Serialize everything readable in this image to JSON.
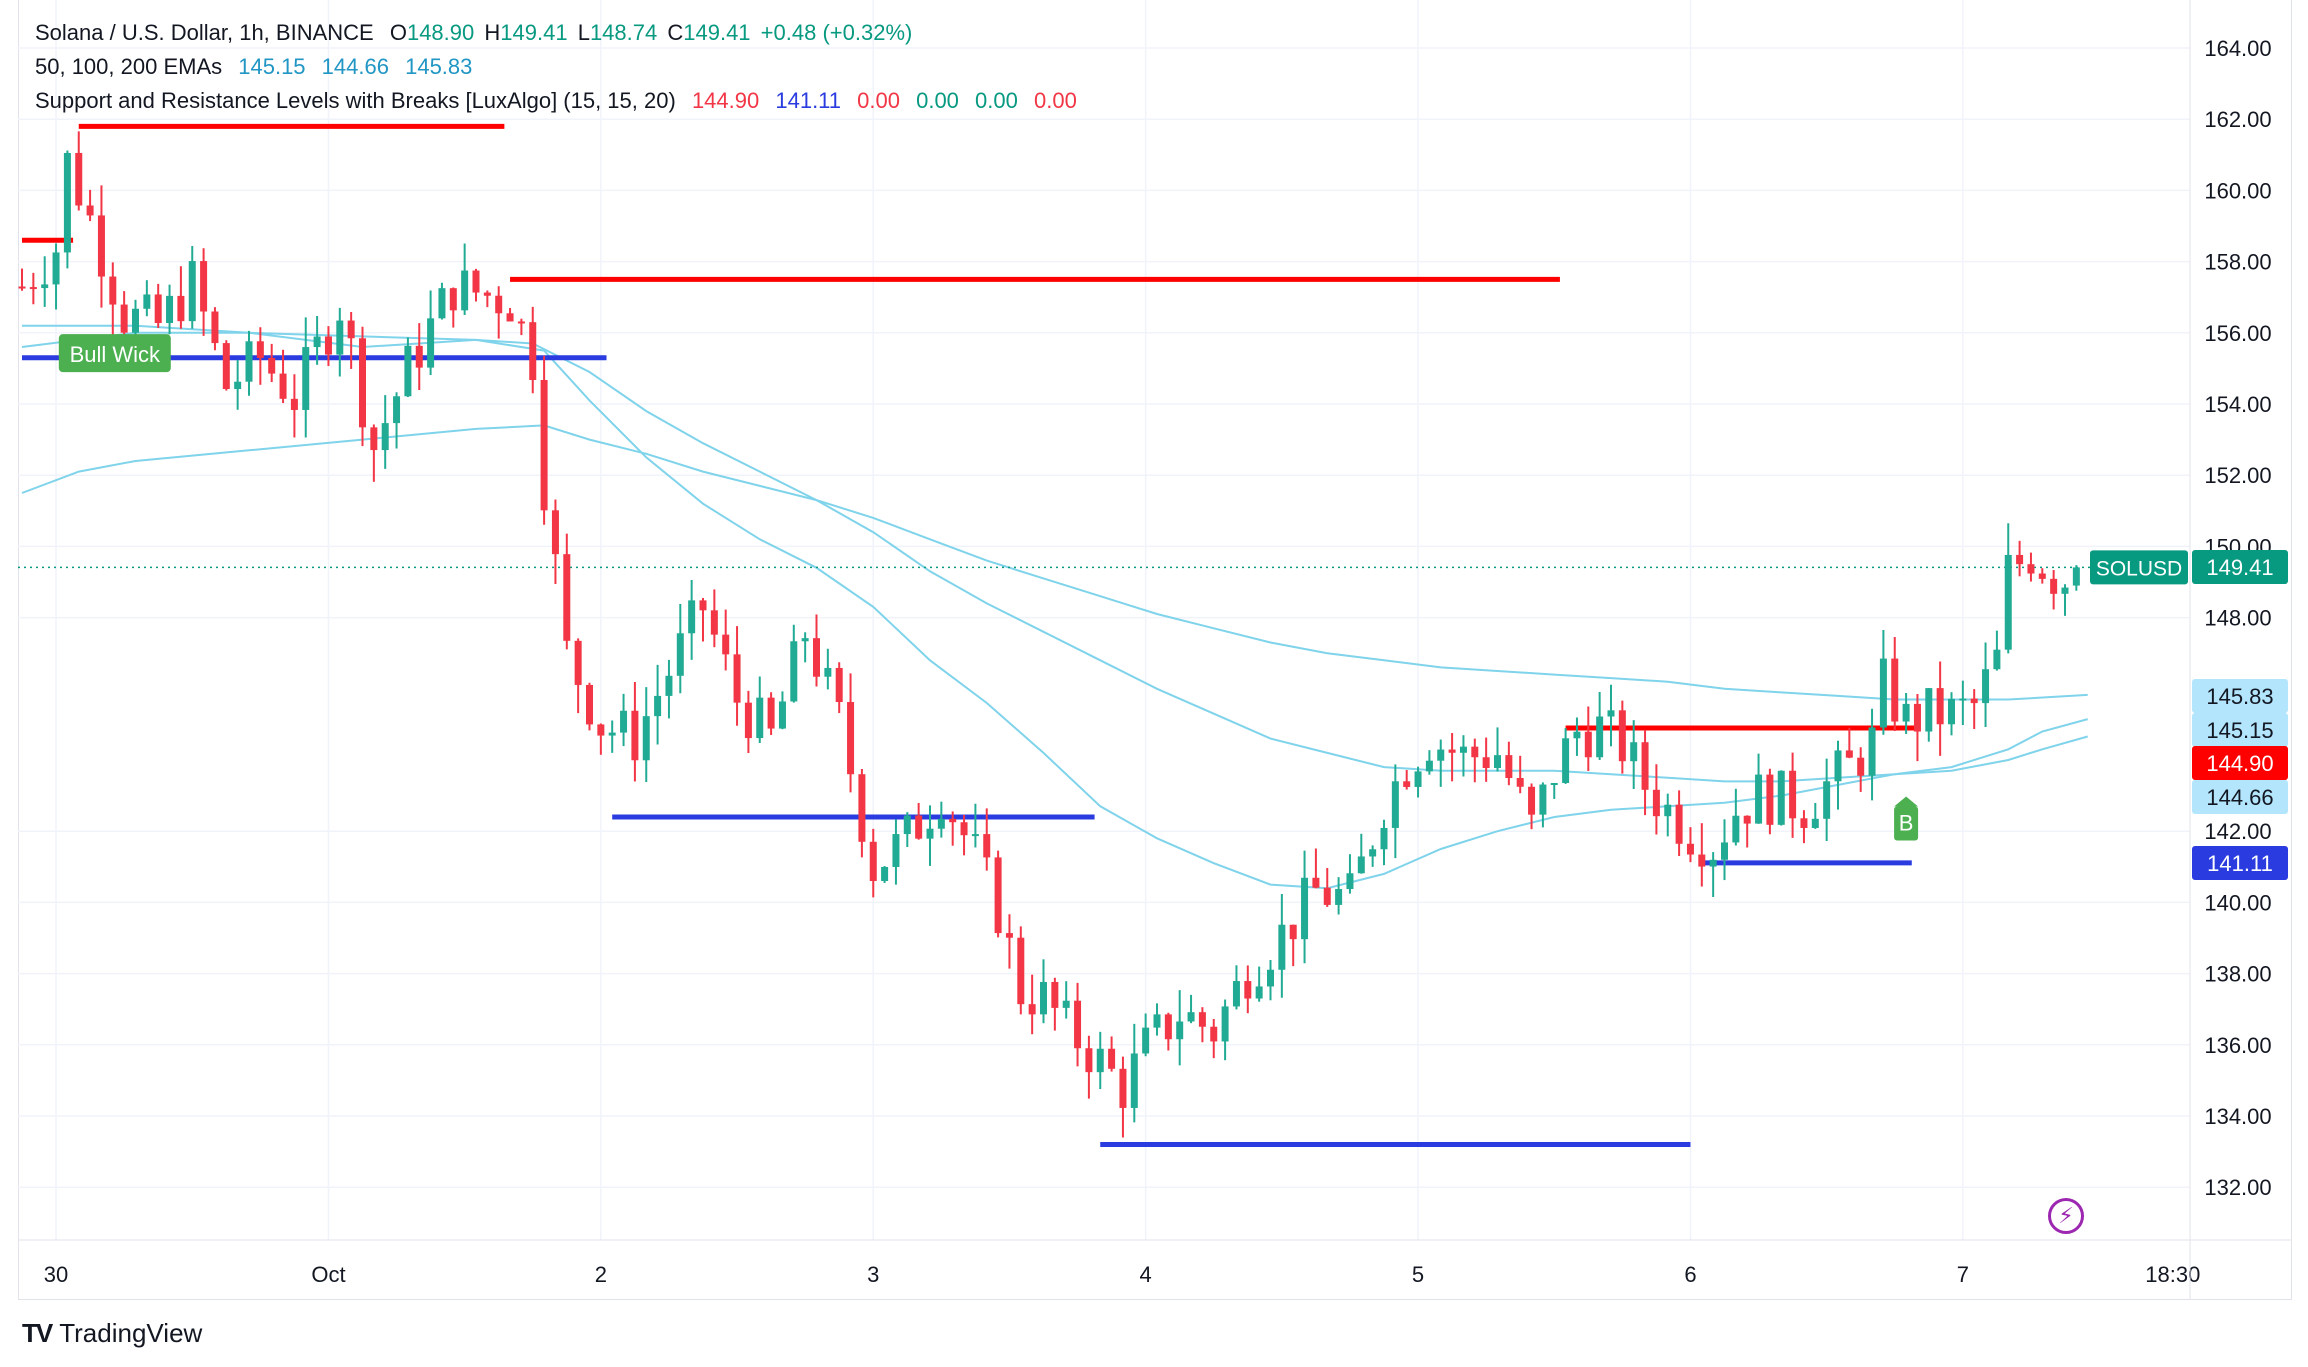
{
  "header": {
    "symbol": "Solana / U.S. Dollar, 1h, BINANCE",
    "o_label": "O",
    "o_value": "148.90",
    "h_label": "H",
    "h_value": "149.41",
    "l_label": "L",
    "l_value": "148.74",
    "c_label": "C",
    "c_value": "149.41",
    "change": "+0.48 (+0.32%)"
  },
  "indicators": {
    "ema_title": "50, 100, 200 EMAs",
    "ema_values": [
      "145.15",
      "144.66",
      "145.83"
    ],
    "sr_title": "Support and Resistance Levels with Breaks [LuxAlgo] (15, 15, 20)",
    "sr_values": [
      "144.90",
      "141.11",
      "0.00",
      "0.00",
      "0.00",
      "0.00"
    ]
  },
  "colors": {
    "up": "#22ab94",
    "down": "#f23645",
    "ema": "#7fd3ea",
    "resistance": "#ff0000",
    "support": "#2a3ce0",
    "grid": "#f0f3fa",
    "green_value": "#089981",
    "ema_value": "#2196c4",
    "badge_green": "#4caf50"
  },
  "labels": {
    "bull_wick": "Bull Wick",
    "break_b": "B",
    "symbol_tag": "SOLUSD",
    "brand": "TradingView"
  },
  "price_tags": [
    {
      "text": "149.41",
      "value": 149.41,
      "bg": "#089981"
    },
    {
      "text": "145.83",
      "value": 145.83,
      "bg": "#b3e5fc"
    },
    {
      "text": "145.15",
      "value": 145.15,
      "bg": "#b3e5fc"
    },
    {
      "text": "144.90",
      "value": 144.9,
      "bg": "#ff0000"
    },
    {
      "text": "144.66",
      "value": 144.66,
      "bg": "#b3e5fc"
    },
    {
      "text": "141.11",
      "value": 141.11,
      "bg": "#2a3ce0"
    }
  ],
  "chart_data": {
    "type": "candlestick",
    "interval": "1h",
    "yticks": [
      "164.00",
      "162.00",
      "160.00",
      "158.00",
      "156.00",
      "154.00",
      "152.00",
      "150.00",
      "148.00",
      "142.00",
      "140.00",
      "138.00",
      "136.00",
      "134.00",
      "132.00"
    ],
    "ylim": [
      131.5,
      165
    ],
    "xticks": [
      {
        "label": "30",
        "t": 3
      },
      {
        "label": "Oct",
        "t": 27
      },
      {
        "label": "2",
        "t": 51
      },
      {
        "label": "3",
        "t": 75
      },
      {
        "label": "4",
        "t": 99
      },
      {
        "label": "5",
        "t": 123
      },
      {
        "label": "6",
        "t": 147
      },
      {
        "label": "7",
        "t": 171
      },
      {
        "label": "18:30",
        "t": 189.5
      }
    ],
    "last_price": 149.41,
    "keypoints": [
      [
        0,
        157.3
      ],
      [
        3,
        158.4
      ],
      [
        4,
        160.8
      ],
      [
        6,
        159.2
      ],
      [
        9,
        156.5
      ],
      [
        12,
        156.2
      ],
      [
        15,
        157.4
      ],
      [
        18,
        154.5
      ],
      [
        21,
        155.3
      ],
      [
        24,
        154.2
      ],
      [
        28,
        156.8
      ],
      [
        31,
        152.8
      ],
      [
        34,
        155.0
      ],
      [
        38,
        157.3
      ],
      [
        43,
        156.9
      ],
      [
        45,
        155.3
      ],
      [
        46,
        151.8
      ],
      [
        48,
        147.0
      ],
      [
        51,
        145.0
      ],
      [
        54,
        144.6
      ],
      [
        57,
        146.5
      ],
      [
        60,
        148.3
      ],
      [
        63,
        145.7
      ],
      [
        66,
        144.6
      ],
      [
        69,
        147.6
      ],
      [
        72,
        145.1
      ],
      [
        75,
        141.0
      ],
      [
        78,
        141.8
      ],
      [
        81,
        143.1
      ],
      [
        84,
        141.3
      ],
      [
        86,
        139.8
      ],
      [
        88,
        137.5
      ],
      [
        90,
        137.3
      ],
      [
        92,
        136.5
      ],
      [
        95,
        135.5
      ],
      [
        97,
        134.8
      ],
      [
        99,
        135.9
      ],
      [
        102,
        136.9
      ],
      [
        105,
        136.4
      ],
      [
        108,
        138.1
      ],
      [
        111,
        139.1
      ],
      [
        114,
        140.3
      ],
      [
        117,
        140.1
      ],
      [
        120,
        142.8
      ],
      [
        122,
        143.9
      ],
      [
        124,
        144.6
      ],
      [
        127,
        144.1
      ],
      [
        130,
        144.2
      ],
      [
        133,
        142.1
      ],
      [
        135,
        143.7
      ],
      [
        137,
        144.8
      ],
      [
        139,
        144.9
      ],
      [
        141,
        144.4
      ],
      [
        143,
        143.3
      ],
      [
        145,
        142.6
      ],
      [
        147,
        142.0
      ],
      [
        149,
        141.6
      ],
      [
        151,
        142.6
      ],
      [
        153,
        143.0
      ],
      [
        155,
        142.9
      ],
      [
        157,
        142.7
      ],
      [
        159,
        143.3
      ],
      [
        161,
        143.8
      ],
      [
        163,
        144.5
      ],
      [
        164,
        146.1
      ],
      [
        166,
        145.1
      ],
      [
        168,
        145.3
      ],
      [
        170,
        145.3
      ],
      [
        172,
        145.5
      ],
      [
        174,
        146.8
      ],
      [
        175,
        149.3
      ],
      [
        177,
        149.8
      ],
      [
        179,
        149.2
      ],
      [
        180,
        149.1
      ],
      [
        181,
        149.41
      ]
    ],
    "series": [
      {
        "name": "EMA 50",
        "points": [
          [
            0,
            156.2
          ],
          [
            10,
            156.2
          ],
          [
            20,
            156.0
          ],
          [
            30,
            155.6
          ],
          [
            40,
            155.8
          ],
          [
            46,
            155.5
          ],
          [
            50,
            154.1
          ],
          [
            55,
            152.5
          ],
          [
            60,
            151.2
          ],
          [
            65,
            150.2
          ],
          [
            70,
            149.4
          ],
          [
            75,
            148.3
          ],
          [
            80,
            146.8
          ],
          [
            85,
            145.6
          ],
          [
            90,
            144.2
          ],
          [
            95,
            142.7
          ],
          [
            100,
            141.8
          ],
          [
            105,
            141.1
          ],
          [
            110,
            140.5
          ],
          [
            115,
            140.4
          ],
          [
            120,
            140.8
          ],
          [
            125,
            141.5
          ],
          [
            130,
            142.0
          ],
          [
            135,
            142.4
          ],
          [
            140,
            142.6
          ],
          [
            145,
            142.7
          ],
          [
            150,
            142.8
          ],
          [
            155,
            143.0
          ],
          [
            160,
            143.3
          ],
          [
            165,
            143.6
          ],
          [
            170,
            143.8
          ],
          [
            175,
            144.3
          ],
          [
            178,
            144.8
          ],
          [
            182,
            145.15
          ]
        ]
      },
      {
        "name": "EMA 100",
        "points": [
          [
            0,
            155.6
          ],
          [
            10,
            156.0
          ],
          [
            20,
            156.0
          ],
          [
            30,
            155.9
          ],
          [
            40,
            155.8
          ],
          [
            45,
            155.7
          ],
          [
            50,
            154.9
          ],
          [
            55,
            153.8
          ],
          [
            60,
            152.9
          ],
          [
            65,
            152.1
          ],
          [
            70,
            151.3
          ],
          [
            75,
            150.4
          ],
          [
            80,
            149.3
          ],
          [
            85,
            148.4
          ],
          [
            90,
            147.6
          ],
          [
            95,
            146.8
          ],
          [
            100,
            146.0
          ],
          [
            105,
            145.3
          ],
          [
            110,
            144.6
          ],
          [
            115,
            144.2
          ],
          [
            120,
            143.8
          ],
          [
            125,
            143.7
          ],
          [
            130,
            143.7
          ],
          [
            135,
            143.7
          ],
          [
            140,
            143.6
          ],
          [
            145,
            143.5
          ],
          [
            150,
            143.4
          ],
          [
            155,
            143.4
          ],
          [
            160,
            143.5
          ],
          [
            165,
            143.6
          ],
          [
            170,
            143.7
          ],
          [
            175,
            144.0
          ],
          [
            178,
            144.3
          ],
          [
            182,
            144.66
          ]
        ]
      },
      {
        "name": "EMA 200",
        "points": [
          [
            0,
            151.5
          ],
          [
            5,
            152.1
          ],
          [
            10,
            152.4
          ],
          [
            20,
            152.7
          ],
          [
            30,
            153.0
          ],
          [
            40,
            153.3
          ],
          [
            46,
            153.4
          ],
          [
            50,
            153.0
          ],
          [
            55,
            152.6
          ],
          [
            60,
            152.1
          ],
          [
            65,
            151.7
          ],
          [
            70,
            151.3
          ],
          [
            75,
            150.8
          ],
          [
            80,
            150.2
          ],
          [
            85,
            149.6
          ],
          [
            90,
            149.1
          ],
          [
            95,
            148.6
          ],
          [
            100,
            148.1
          ],
          [
            105,
            147.7
          ],
          [
            110,
            147.3
          ],
          [
            115,
            147.0
          ],
          [
            120,
            146.8
          ],
          [
            125,
            146.6
          ],
          [
            130,
            146.5
          ],
          [
            135,
            146.4
          ],
          [
            140,
            146.3
          ],
          [
            145,
            146.2
          ],
          [
            150,
            146.0
          ],
          [
            155,
            145.9
          ],
          [
            160,
            145.8
          ],
          [
            165,
            145.7
          ],
          [
            170,
            145.7
          ],
          [
            175,
            145.7
          ],
          [
            182,
            145.83
          ]
        ]
      }
    ],
    "levels": [
      {
        "type": "resistance",
        "value": 158.6,
        "t1": 0,
        "t2": 4.5
      },
      {
        "type": "resistance",
        "value": 161.8,
        "t1": 5,
        "t2": 42.5
      },
      {
        "type": "resistance",
        "value": 157.5,
        "t1": 43,
        "t2": 135.5
      },
      {
        "type": "resistance",
        "value": 144.9,
        "t1": 136,
        "t2": 167
      },
      {
        "type": "support",
        "value": 155.3,
        "t1": 0,
        "t2": 51.5
      },
      {
        "type": "support",
        "value": 142.4,
        "t1": 52,
        "t2": 94.5
      },
      {
        "type": "support",
        "value": 133.2,
        "t1": 95,
        "t2": 147
      },
      {
        "type": "support",
        "value": 141.11,
        "t1": 148,
        "t2": 166.5
      }
    ],
    "annotations": [
      {
        "text": "Bull Wick",
        "t": 8,
        "value": 155.4,
        "pos": "on-level"
      },
      {
        "text": "B",
        "t": 166,
        "value": 142.3,
        "pos": "below"
      }
    ]
  }
}
